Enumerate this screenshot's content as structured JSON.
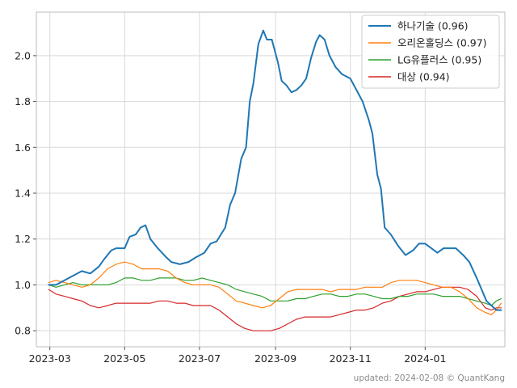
{
  "chart_data": {
    "type": "line",
    "title": "",
    "xlabel": "",
    "ylabel": "",
    "x_ticks": [
      "2023-03",
      "2023-05",
      "2023-07",
      "2023-09",
      "2023-11",
      "2024-01"
    ],
    "y_ticks": [
      "0.8",
      "1.0",
      "1.2",
      "1.4",
      "1.6",
      "1.8",
      "2.0"
    ],
    "xlim": [
      "2023-02-18",
      "2024-03-06"
    ],
    "ylim": [
      0.73,
      2.19
    ],
    "grid": true,
    "legend_position": "top-right",
    "series": [
      {
        "name": "하나기술 (0.96)",
        "color": "#1f77b4",
        "points": [
          [
            "2023-02-28",
            1.0
          ],
          [
            "2023-03-06",
            1.0
          ],
          [
            "2023-03-13",
            1.02
          ],
          [
            "2023-03-20",
            1.04
          ],
          [
            "2023-03-27",
            1.06
          ],
          [
            "2023-04-03",
            1.05
          ],
          [
            "2023-04-10",
            1.08
          ],
          [
            "2023-04-14",
            1.11
          ],
          [
            "2023-04-20",
            1.15
          ],
          [
            "2023-04-24",
            1.16
          ],
          [
            "2023-05-01",
            1.16
          ],
          [
            "2023-05-05",
            1.21
          ],
          [
            "2023-05-10",
            1.22
          ],
          [
            "2023-05-14",
            1.25
          ],
          [
            "2023-05-18",
            1.26
          ],
          [
            "2023-05-22",
            1.2
          ],
          [
            "2023-05-28",
            1.16
          ],
          [
            "2023-06-04",
            1.12
          ],
          [
            "2023-06-08",
            1.1
          ],
          [
            "2023-06-15",
            1.09
          ],
          [
            "2023-06-22",
            1.1
          ],
          [
            "2023-06-28",
            1.12
          ],
          [
            "2023-07-05",
            1.14
          ],
          [
            "2023-07-10",
            1.18
          ],
          [
            "2023-07-15",
            1.19
          ],
          [
            "2023-07-22",
            1.25
          ],
          [
            "2023-07-26",
            1.35
          ],
          [
            "2023-07-30",
            1.4
          ],
          [
            "2023-08-04",
            1.55
          ],
          [
            "2023-08-08",
            1.6
          ],
          [
            "2023-08-11",
            1.8
          ],
          [
            "2023-08-14",
            1.88
          ],
          [
            "2023-08-18",
            2.05
          ],
          [
            "2023-08-22",
            2.11
          ],
          [
            "2023-08-25",
            2.07
          ],
          [
            "2023-08-29",
            2.07
          ],
          [
            "2023-09-03",
            1.97
          ],
          [
            "2023-09-06",
            1.89
          ],
          [
            "2023-09-10",
            1.87
          ],
          [
            "2023-09-14",
            1.84
          ],
          [
            "2023-09-18",
            1.85
          ],
          [
            "2023-09-22",
            1.87
          ],
          [
            "2023-09-26",
            1.9
          ],
          [
            "2023-09-30",
            1.99
          ],
          [
            "2023-10-04",
            2.06
          ],
          [
            "2023-10-07",
            2.09
          ],
          [
            "2023-10-11",
            2.07
          ],
          [
            "2023-10-15",
            2.0
          ],
          [
            "2023-10-20",
            1.95
          ],
          [
            "2023-10-25",
            1.92
          ],
          [
            "2023-11-01",
            1.9
          ],
          [
            "2023-11-06",
            1.85
          ],
          [
            "2023-11-11",
            1.8
          ],
          [
            "2023-11-16",
            1.72
          ],
          [
            "2023-11-19",
            1.66
          ],
          [
            "2023-11-23",
            1.48
          ],
          [
            "2023-11-26",
            1.42
          ],
          [
            "2023-11-29",
            1.25
          ],
          [
            "2023-12-04",
            1.22
          ],
          [
            "2023-12-10",
            1.17
          ],
          [
            "2023-12-16",
            1.13
          ],
          [
            "2023-12-22",
            1.15
          ],
          [
            "2023-12-27",
            1.18
          ],
          [
            "2024-01-01",
            1.18
          ],
          [
            "2024-01-06",
            1.16
          ],
          [
            "2024-01-11",
            1.14
          ],
          [
            "2024-01-16",
            1.16
          ],
          [
            "2024-01-21",
            1.16
          ],
          [
            "2024-01-26",
            1.16
          ],
          [
            "2024-02-01",
            1.13
          ],
          [
            "2024-02-06",
            1.1
          ],
          [
            "2024-02-12",
            1.03
          ],
          [
            "2024-02-16",
            0.98
          ],
          [
            "2024-02-20",
            0.93
          ],
          [
            "2024-02-24",
            0.91
          ],
          [
            "2024-02-28",
            0.89
          ],
          [
            "2024-03-03",
            0.89
          ]
        ]
      },
      {
        "name": "오리온홀딩스 (0.97)",
        "color": "#ff7f0e",
        "points": [
          [
            "2023-02-28",
            1.01
          ],
          [
            "2023-03-06",
            1.02
          ],
          [
            "2023-03-13",
            1.01
          ],
          [
            "2023-03-20",
            1.0
          ],
          [
            "2023-03-27",
            0.99
          ],
          [
            "2023-04-03",
            1.0
          ],
          [
            "2023-04-10",
            1.03
          ],
          [
            "2023-04-17",
            1.07
          ],
          [
            "2023-04-24",
            1.09
          ],
          [
            "2023-05-01",
            1.1
          ],
          [
            "2023-05-08",
            1.09
          ],
          [
            "2023-05-15",
            1.07
          ],
          [
            "2023-05-22",
            1.07
          ],
          [
            "2023-05-29",
            1.07
          ],
          [
            "2023-06-05",
            1.06
          ],
          [
            "2023-06-12",
            1.03
          ],
          [
            "2023-06-19",
            1.01
          ],
          [
            "2023-06-26",
            1.0
          ],
          [
            "2023-07-03",
            1.0
          ],
          [
            "2023-07-10",
            1.0
          ],
          [
            "2023-07-17",
            0.99
          ],
          [
            "2023-07-24",
            0.96
          ],
          [
            "2023-07-31",
            0.93
          ],
          [
            "2023-08-07",
            0.92
          ],
          [
            "2023-08-14",
            0.91
          ],
          [
            "2023-08-21",
            0.9
          ],
          [
            "2023-08-28",
            0.91
          ],
          [
            "2023-09-04",
            0.94
          ],
          [
            "2023-09-11",
            0.97
          ],
          [
            "2023-09-18",
            0.98
          ],
          [
            "2023-09-25",
            0.98
          ],
          [
            "2023-10-02",
            0.98
          ],
          [
            "2023-10-09",
            0.98
          ],
          [
            "2023-10-16",
            0.97
          ],
          [
            "2023-10-23",
            0.98
          ],
          [
            "2023-10-30",
            0.98
          ],
          [
            "2023-11-06",
            0.98
          ],
          [
            "2023-11-13",
            0.99
          ],
          [
            "2023-11-20",
            0.99
          ],
          [
            "2023-11-27",
            0.99
          ],
          [
            "2023-12-04",
            1.01
          ],
          [
            "2023-12-11",
            1.02
          ],
          [
            "2023-12-18",
            1.02
          ],
          [
            "2023-12-25",
            1.02
          ],
          [
            "2024-01-01",
            1.01
          ],
          [
            "2024-01-08",
            1.0
          ],
          [
            "2024-01-15",
            0.99
          ],
          [
            "2024-01-22",
            0.99
          ],
          [
            "2024-01-29",
            0.97
          ],
          [
            "2024-02-05",
            0.94
          ],
          [
            "2024-02-12",
            0.9
          ],
          [
            "2024-02-19",
            0.88
          ],
          [
            "2024-02-24",
            0.87
          ],
          [
            "2024-02-28",
            0.89
          ],
          [
            "2024-03-03",
            0.92
          ]
        ]
      },
      {
        "name": "LG유플러스 (0.95)",
        "color": "#2ca02c",
        "points": [
          [
            "2023-02-28",
            1.0
          ],
          [
            "2023-03-06",
            0.99
          ],
          [
            "2023-03-13",
            1.0
          ],
          [
            "2023-03-20",
            1.01
          ],
          [
            "2023-03-27",
            1.0
          ],
          [
            "2023-04-03",
            1.0
          ],
          [
            "2023-04-10",
            1.0
          ],
          [
            "2023-04-17",
            1.0
          ],
          [
            "2023-04-24",
            1.01
          ],
          [
            "2023-05-01",
            1.03
          ],
          [
            "2023-05-08",
            1.03
          ],
          [
            "2023-05-15",
            1.02
          ],
          [
            "2023-05-22",
            1.02
          ],
          [
            "2023-05-29",
            1.03
          ],
          [
            "2023-06-05",
            1.03
          ],
          [
            "2023-06-12",
            1.03
          ],
          [
            "2023-06-19",
            1.02
          ],
          [
            "2023-06-26",
            1.02
          ],
          [
            "2023-07-03",
            1.03
          ],
          [
            "2023-07-10",
            1.02
          ],
          [
            "2023-07-17",
            1.01
          ],
          [
            "2023-07-24",
            1.0
          ],
          [
            "2023-07-31",
            0.98
          ],
          [
            "2023-08-07",
            0.97
          ],
          [
            "2023-08-14",
            0.96
          ],
          [
            "2023-08-21",
            0.95
          ],
          [
            "2023-08-28",
            0.93
          ],
          [
            "2023-09-04",
            0.93
          ],
          [
            "2023-09-11",
            0.93
          ],
          [
            "2023-09-18",
            0.94
          ],
          [
            "2023-09-25",
            0.94
          ],
          [
            "2023-10-02",
            0.95
          ],
          [
            "2023-10-09",
            0.96
          ],
          [
            "2023-10-16",
            0.96
          ],
          [
            "2023-10-23",
            0.95
          ],
          [
            "2023-10-30",
            0.95
          ],
          [
            "2023-11-06",
            0.96
          ],
          [
            "2023-11-13",
            0.96
          ],
          [
            "2023-11-20",
            0.95
          ],
          [
            "2023-11-27",
            0.94
          ],
          [
            "2023-12-04",
            0.94
          ],
          [
            "2023-12-11",
            0.95
          ],
          [
            "2023-12-18",
            0.95
          ],
          [
            "2023-12-25",
            0.96
          ],
          [
            "2024-01-01",
            0.96
          ],
          [
            "2024-01-08",
            0.96
          ],
          [
            "2024-01-15",
            0.95
          ],
          [
            "2024-01-22",
            0.95
          ],
          [
            "2024-01-29",
            0.95
          ],
          [
            "2024-02-05",
            0.94
          ],
          [
            "2024-02-12",
            0.93
          ],
          [
            "2024-02-19",
            0.92
          ],
          [
            "2024-02-24",
            0.91
          ],
          [
            "2024-02-28",
            0.93
          ],
          [
            "2024-03-03",
            0.94
          ]
        ]
      },
      {
        "name": "대상 (0.94)",
        "color": "#d62728",
        "points": [
          [
            "2023-02-28",
            0.98
          ],
          [
            "2023-03-06",
            0.96
          ],
          [
            "2023-03-13",
            0.95
          ],
          [
            "2023-03-20",
            0.94
          ],
          [
            "2023-03-27",
            0.93
          ],
          [
            "2023-04-03",
            0.91
          ],
          [
            "2023-04-10",
            0.9
          ],
          [
            "2023-04-17",
            0.91
          ],
          [
            "2023-04-24",
            0.92
          ],
          [
            "2023-05-01",
            0.92
          ],
          [
            "2023-05-08",
            0.92
          ],
          [
            "2023-05-15",
            0.92
          ],
          [
            "2023-05-22",
            0.92
          ],
          [
            "2023-05-29",
            0.93
          ],
          [
            "2023-06-05",
            0.93
          ],
          [
            "2023-06-12",
            0.92
          ],
          [
            "2023-06-19",
            0.92
          ],
          [
            "2023-06-26",
            0.91
          ],
          [
            "2023-07-03",
            0.91
          ],
          [
            "2023-07-10",
            0.91
          ],
          [
            "2023-07-17",
            0.89
          ],
          [
            "2023-07-24",
            0.86
          ],
          [
            "2023-07-31",
            0.83
          ],
          [
            "2023-08-07",
            0.81
          ],
          [
            "2023-08-14",
            0.8
          ],
          [
            "2023-08-21",
            0.8
          ],
          [
            "2023-08-28",
            0.8
          ],
          [
            "2023-09-04",
            0.81
          ],
          [
            "2023-09-11",
            0.83
          ],
          [
            "2023-09-18",
            0.85
          ],
          [
            "2023-09-25",
            0.86
          ],
          [
            "2023-10-02",
            0.86
          ],
          [
            "2023-10-09",
            0.86
          ],
          [
            "2023-10-16",
            0.86
          ],
          [
            "2023-10-23",
            0.87
          ],
          [
            "2023-10-30",
            0.88
          ],
          [
            "2023-11-06",
            0.89
          ],
          [
            "2023-11-13",
            0.89
          ],
          [
            "2023-11-20",
            0.9
          ],
          [
            "2023-11-27",
            0.92
          ],
          [
            "2023-12-04",
            0.93
          ],
          [
            "2023-12-11",
            0.95
          ],
          [
            "2023-12-18",
            0.96
          ],
          [
            "2023-12-25",
            0.97
          ],
          [
            "2024-01-01",
            0.97
          ],
          [
            "2024-01-08",
            0.98
          ],
          [
            "2024-01-15",
            0.99
          ],
          [
            "2024-01-22",
            0.99
          ],
          [
            "2024-01-29",
            0.99
          ],
          [
            "2024-02-05",
            0.98
          ],
          [
            "2024-02-12",
            0.95
          ],
          [
            "2024-02-19",
            0.9
          ],
          [
            "2024-02-24",
            0.89
          ],
          [
            "2024-02-28",
            0.9
          ],
          [
            "2024-03-03",
            0.9
          ]
        ]
      }
    ]
  },
  "footer": {
    "text": "updated: 2024-02-08 © QuantKang"
  }
}
